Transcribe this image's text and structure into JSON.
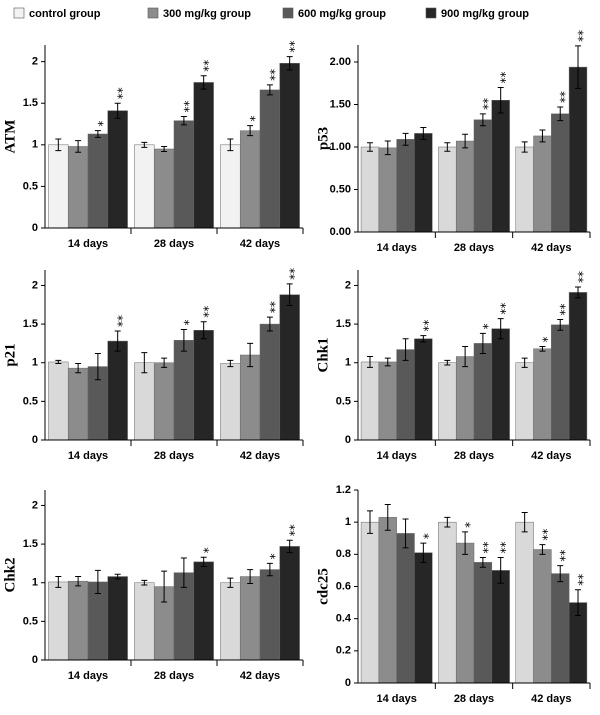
{
  "chart_data": [
    {
      "type": "bar",
      "ylabel": "ATM",
      "categories": [
        "14 days",
        "28 days",
        "42 days"
      ],
      "ylim": [
        0,
        2.2
      ],
      "yticks": [
        0,
        0.5,
        1,
        1.5,
        2
      ],
      "series": [
        {
          "name": "control group",
          "color": "#f2f2f2",
          "values": [
            1.0,
            1.0,
            1.0
          ],
          "errors": [
            0.07,
            0.03,
            0.07
          ],
          "significance": [
            null,
            null,
            null
          ]
        },
        {
          "name": "300 mg/kg group",
          "color": "#8c8c8c",
          "values": [
            0.98,
            0.95,
            1.17
          ],
          "errors": [
            0.07,
            0.03,
            0.06
          ],
          "significance": [
            null,
            null,
            "*"
          ]
        },
        {
          "name": "600 mg/kg group",
          "color": "#595959",
          "values": [
            1.13,
            1.29,
            1.66
          ],
          "errors": [
            0.04,
            0.05,
            0.06
          ],
          "significance": [
            "*",
            "**",
            "**"
          ]
        },
        {
          "name": "900 mg/kg group",
          "color": "#262626",
          "values": [
            1.41,
            1.75,
            1.98
          ],
          "errors": [
            0.09,
            0.08,
            0.08
          ],
          "significance": [
            "**",
            "**",
            "**"
          ]
        }
      ]
    },
    {
      "type": "bar",
      "ylabel": "p53",
      "categories": [
        "14 days",
        "28 days",
        "42 days"
      ],
      "ylim": [
        0,
        2.2
      ],
      "yticks": [
        {
          "value": 0,
          "label": "0.00"
        },
        {
          "value": 0.5,
          "label": "0.50"
        },
        {
          "value": 1,
          "label": "1.00"
        },
        {
          "value": 1.5,
          "label": "1.50"
        },
        {
          "value": 2,
          "label": "2.00"
        }
      ],
      "series": [
        {
          "name": "control group",
          "color": "#d9d9d9",
          "values": [
            1.0,
            1.0,
            1.0
          ],
          "errors": [
            0.05,
            0.05,
            0.06
          ],
          "significance": [
            null,
            null,
            null
          ]
        },
        {
          "name": "300 mg/kg group",
          "color": "#8c8c8c",
          "values": [
            0.99,
            1.07,
            1.13
          ],
          "errors": [
            0.08,
            0.08,
            0.07
          ],
          "significance": [
            null,
            null,
            null
          ]
        },
        {
          "name": "600 mg/kg group",
          "color": "#595959",
          "values": [
            1.09,
            1.32,
            1.39
          ],
          "errors": [
            0.07,
            0.07,
            0.08
          ],
          "significance": [
            null,
            "**",
            "**"
          ]
        },
        {
          "name": "900 mg/kg group",
          "color": "#262626",
          "values": [
            1.16,
            1.55,
            1.94
          ],
          "errors": [
            0.07,
            0.15,
            0.25
          ],
          "significance": [
            null,
            "**",
            "**"
          ]
        }
      ]
    },
    {
      "type": "bar",
      "ylabel": "p21",
      "categories": [
        "14 days",
        "28 days",
        "42 days"
      ],
      "ylim": [
        0,
        2.2
      ],
      "yticks": [
        0,
        0.5,
        1,
        1.5,
        2
      ],
      "series": [
        {
          "name": "control group",
          "color": "#d9d9d9",
          "values": [
            1.01,
            1.0,
            0.99
          ],
          "errors": [
            0.02,
            0.13,
            0.04
          ],
          "significance": [
            null,
            null,
            null
          ]
        },
        {
          "name": "300 mg/kg group",
          "color": "#8c8c8c",
          "values": [
            0.93,
            1.0,
            1.1
          ],
          "errors": [
            0.06,
            0.06,
            0.15
          ],
          "significance": [
            null,
            null,
            null
          ]
        },
        {
          "name": "600 mg/kg group",
          "color": "#595959",
          "values": [
            0.95,
            1.29,
            1.5
          ],
          "errors": [
            0.17,
            0.14,
            0.09
          ],
          "significance": [
            null,
            "*",
            "**"
          ]
        },
        {
          "name": "900 mg/kg group",
          "color": "#262626",
          "values": [
            1.28,
            1.42,
            1.88
          ],
          "errors": [
            0.13,
            0.11,
            0.14
          ],
          "significance": [
            "**",
            "**",
            "**"
          ]
        }
      ]
    },
    {
      "type": "bar",
      "ylabel": "Chk1",
      "categories": [
        "14 days",
        "28 days",
        "42 days"
      ],
      "ylim": [
        0,
        2.2
      ],
      "yticks": [
        0,
        0.5,
        1,
        1.5,
        2
      ],
      "series": [
        {
          "name": "control group",
          "color": "#d9d9d9",
          "values": [
            1.01,
            1.0,
            1.0
          ],
          "errors": [
            0.07,
            0.03,
            0.06
          ],
          "significance": [
            null,
            null,
            null
          ]
        },
        {
          "name": "300 mg/kg group",
          "color": "#8c8c8c",
          "values": [
            1.01,
            1.08,
            1.18
          ],
          "errors": [
            0.05,
            0.13,
            0.03
          ],
          "significance": [
            null,
            null,
            "*"
          ]
        },
        {
          "name": "600 mg/kg group",
          "color": "#595959",
          "values": [
            1.17,
            1.25,
            1.49
          ],
          "errors": [
            0.14,
            0.13,
            0.07
          ],
          "significance": [
            null,
            "*",
            "**"
          ]
        },
        {
          "name": "900 mg/kg group",
          "color": "#262626",
          "values": [
            1.31,
            1.44,
            1.91
          ],
          "errors": [
            0.04,
            0.13,
            0.07
          ],
          "significance": [
            "**",
            "**",
            "**"
          ]
        }
      ]
    },
    {
      "type": "bar",
      "ylabel": "Chk2",
      "categories": [
        "14 days",
        "28 days",
        "42 days"
      ],
      "ylim": [
        0,
        2.2
      ],
      "yticks": [
        0,
        0.5,
        1,
        1.5,
        2
      ],
      "series": [
        {
          "name": "control group",
          "color": "#d9d9d9",
          "values": [
            1.01,
            1.0,
            1.0
          ],
          "errors": [
            0.07,
            0.03,
            0.06
          ],
          "significance": [
            null,
            null,
            null
          ]
        },
        {
          "name": "300 mg/kg group",
          "color": "#8c8c8c",
          "values": [
            1.02,
            0.95,
            1.08
          ],
          "errors": [
            0.06,
            0.2,
            0.09
          ],
          "significance": [
            null,
            null,
            null
          ]
        },
        {
          "name": "600 mg/kg group",
          "color": "#595959",
          "values": [
            1.01,
            1.13,
            1.17
          ],
          "errors": [
            0.15,
            0.19,
            0.08
          ],
          "significance": [
            null,
            null,
            "*"
          ]
        },
        {
          "name": "900 mg/kg group",
          "color": "#262626",
          "values": [
            1.08,
            1.27,
            1.47
          ],
          "errors": [
            0.03,
            0.06,
            0.08
          ],
          "significance": [
            null,
            "*",
            "**"
          ]
        }
      ]
    },
    {
      "type": "bar",
      "ylabel": "cdc25",
      "categories": [
        "14 days",
        "28 days",
        "42 days"
      ],
      "ylim": [
        0,
        1.2
      ],
      "yticks": [
        0,
        0.2,
        0.4,
        0.6,
        0.8,
        1,
        1.2
      ],
      "series": [
        {
          "name": "control group",
          "color": "#d9d9d9",
          "values": [
            1.0,
            1.0,
            1.0
          ],
          "errors": [
            0.07,
            0.03,
            0.06
          ],
          "significance": [
            null,
            null,
            null
          ]
        },
        {
          "name": "300 mg/kg group",
          "color": "#8c8c8c",
          "values": [
            1.03,
            0.87,
            0.83
          ],
          "errors": [
            0.08,
            0.07,
            0.03
          ],
          "significance": [
            null,
            "*",
            "**"
          ]
        },
        {
          "name": "600 mg/kg group",
          "color": "#595959",
          "values": [
            0.93,
            0.75,
            0.68
          ],
          "errors": [
            0.09,
            0.03,
            0.05
          ],
          "significance": [
            null,
            "**",
            "**"
          ]
        },
        {
          "name": "900 mg/kg group",
          "color": "#262626",
          "values": [
            0.81,
            0.7,
            0.5
          ],
          "errors": [
            0.06,
            0.08,
            0.08
          ],
          "significance": [
            "*",
            "**",
            "**"
          ]
        }
      ]
    }
  ]
}
